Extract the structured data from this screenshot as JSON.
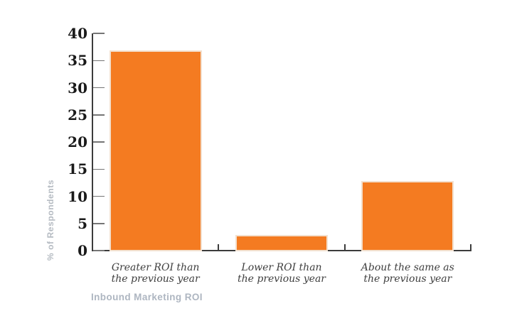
{
  "chart_data": {
    "type": "bar",
    "title": "",
    "categories": [
      "Greater ROI than\nthe previous year",
      "Lower ROI than\nthe previous year",
      "About the same as\nthe previous year"
    ],
    "values": [
      37,
      3,
      13
    ],
    "ylabel": "% of Respondents",
    "xlabel": "",
    "caption": "Inbound Marketing ROI",
    "ylim": [
      0,
      40
    ],
    "yticks": [
      0,
      5,
      10,
      15,
      20,
      25,
      30,
      35,
      40
    ],
    "ytick_labels": [
      "0",
      "5",
      "10",
      "15",
      "20",
      "25",
      "30",
      "35",
      "40"
    ],
    "grid": "off",
    "legend": "none",
    "colors": {
      "bar_fill": "#F47B21",
      "bar_border": "#F3E0CE",
      "axis": "#3C3C3C",
      "tick": "#757575",
      "ytick_label": "#1A1A1A",
      "category_label": "#3E3E3E",
      "muted_label": "#AEB6C1"
    }
  }
}
